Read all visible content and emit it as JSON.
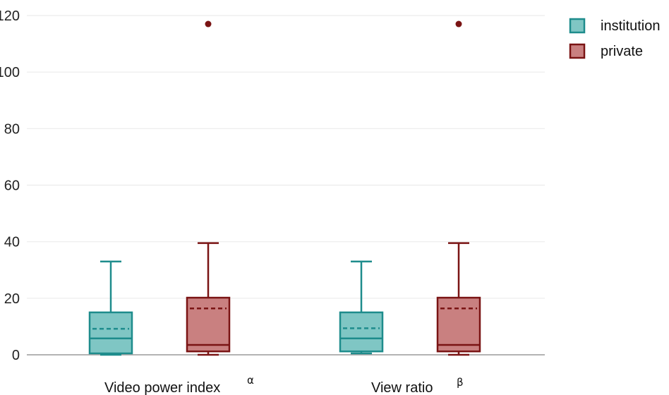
{
  "chart_data": {
    "type": "box",
    "title": "",
    "xlabel": "",
    "ylabel": "",
    "ylim": [
      0,
      120
    ],
    "yticks": [
      0,
      20,
      40,
      60,
      80,
      100,
      120
    ],
    "grid": true,
    "legend_position": "top-right",
    "categories": [
      {
        "label": "Video power index",
        "superscript": "α"
      },
      {
        "label": "View ratio",
        "superscript": "β"
      }
    ],
    "series": [
      {
        "name": "institution",
        "stroke": "#1e8c8c",
        "fill": "#7fc6c4",
        "boxes": [
          {
            "whisker_low": 0,
            "q1": 0.5,
            "median": 5.8,
            "mean": 9.2,
            "q3": 15,
            "whisker_high": 33,
            "outliers": []
          },
          {
            "whisker_low": 0.5,
            "q1": 1.2,
            "median": 5.8,
            "mean": 9.4,
            "q3": 15,
            "whisker_high": 33,
            "outliers": []
          }
        ]
      },
      {
        "name": "private",
        "stroke": "#7a1414",
        "fill": "#c98080",
        "boxes": [
          {
            "whisker_low": 0,
            "q1": 1.2,
            "median": 3.5,
            "mean": 16.4,
            "q3": 20.2,
            "whisker_high": 39.5,
            "outliers": [
              117
            ]
          },
          {
            "whisker_low": 0,
            "q1": 1.2,
            "median": 3.5,
            "mean": 16.4,
            "q3": 20.2,
            "whisker_high": 39.5,
            "outliers": [
              117
            ]
          }
        ]
      }
    ]
  }
}
